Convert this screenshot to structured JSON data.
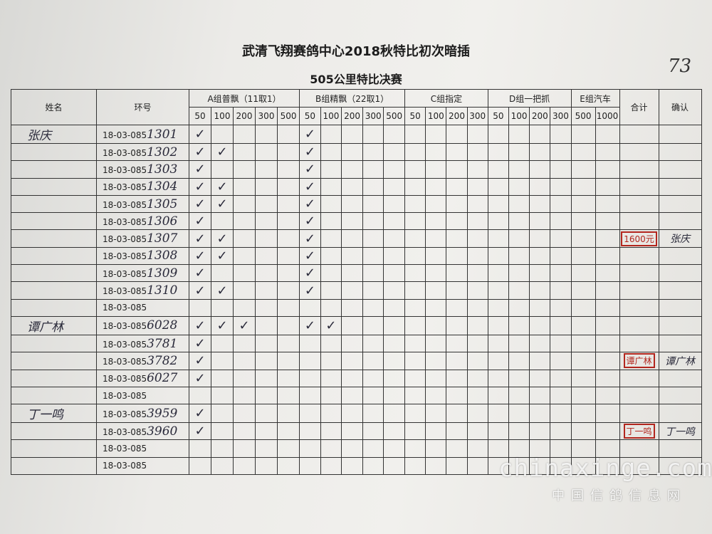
{
  "header": {
    "title": "武清飞翔赛鸽中心2018秋特比初次暗插",
    "subtitle": "505公里特比决赛",
    "page_number": "73"
  },
  "table": {
    "name_header": "姓名",
    "ring_header": "环号",
    "groups": [
      {
        "label": "A组普飘（11取1）",
        "distances": [
          50,
          100,
          200,
          300,
          500
        ]
      },
      {
        "label": "B组精飘（22取1）",
        "distances": [
          50,
          100,
          200,
          300,
          500
        ]
      },
      {
        "label": "C组指定",
        "distances": [
          50,
          100,
          200,
          300
        ]
      },
      {
        "label": "D组一把抓",
        "distances": [
          50,
          100,
          200,
          300
        ]
      },
      {
        "label": "E组汽车",
        "distances": [
          500,
          1000
        ]
      }
    ],
    "total_header": "合计",
    "confirm_header": "确认",
    "rows": [
      {
        "name": "张庆",
        "ring": "18-03-085",
        "ring_suffix": "1301",
        "checks": [
          "✓",
          null,
          null,
          null,
          null,
          "✓",
          null,
          null,
          null,
          null,
          null,
          null,
          null,
          null,
          null,
          null,
          null,
          null,
          null,
          null
        ]
      },
      {
        "ring": "18-03-085",
        "ring_suffix": "1302",
        "checks": [
          "✓",
          "✓",
          null,
          null,
          null,
          "✓",
          null,
          null,
          null,
          null,
          null,
          null,
          null,
          null,
          null,
          null,
          null,
          null,
          null,
          null
        ]
      },
      {
        "ring": "18-03-085",
        "ring_suffix": "1303",
        "checks": [
          "✓",
          null,
          null,
          null,
          null,
          "✓",
          null,
          null,
          null,
          null,
          null,
          null,
          null,
          null,
          null,
          null,
          null,
          null,
          null,
          null
        ]
      },
      {
        "ring": "18-03-085",
        "ring_suffix": "1304",
        "checks": [
          "✓",
          "✓",
          null,
          null,
          null,
          "✓",
          null,
          null,
          null,
          null,
          null,
          null,
          null,
          null,
          null,
          null,
          null,
          null,
          null,
          null
        ]
      },
      {
        "ring": "18-03-085",
        "ring_suffix": "1305",
        "checks": [
          "✓",
          "✓",
          null,
          null,
          null,
          "✓",
          null,
          null,
          null,
          null,
          null,
          null,
          null,
          null,
          null,
          null,
          null,
          null,
          null,
          null
        ]
      },
      {
        "ring": "18-03-085",
        "ring_suffix": "1306",
        "checks": [
          "✓",
          null,
          null,
          null,
          null,
          "✓",
          null,
          null,
          null,
          null,
          null,
          null,
          null,
          null,
          null,
          null,
          null,
          null,
          null,
          null
        ]
      },
      {
        "ring": "18-03-085",
        "ring_suffix": "1307",
        "checks": [
          "✓",
          "✓",
          null,
          null,
          null,
          "✓",
          null,
          null,
          null,
          null,
          null,
          null,
          null,
          null,
          null,
          null,
          null,
          null,
          null,
          null
        ],
        "total": "1600元",
        "confirm": "张庆"
      },
      {
        "ring": "18-03-085",
        "ring_suffix": "1308",
        "checks": [
          "✓",
          "✓",
          null,
          null,
          null,
          "✓",
          null,
          null,
          null,
          null,
          null,
          null,
          null,
          null,
          null,
          null,
          null,
          null,
          null,
          null
        ]
      },
      {
        "ring": "18-03-085",
        "ring_suffix": "1309",
        "checks": [
          "✓",
          null,
          null,
          null,
          null,
          "✓",
          null,
          null,
          null,
          null,
          null,
          null,
          null,
          null,
          null,
          null,
          null,
          null,
          null,
          null
        ]
      },
      {
        "ring": "18-03-085",
        "ring_suffix": "1310",
        "checks": [
          "✓",
          "✓",
          null,
          null,
          null,
          "✓",
          null,
          null,
          null,
          null,
          null,
          null,
          null,
          null,
          null,
          null,
          null,
          null,
          null,
          null
        ]
      },
      {
        "ring": "18-03-085"
      },
      {
        "name": "谭广林",
        "ring": "18-03-085",
        "ring_suffix": "6028",
        "checks": [
          "✓",
          "✓",
          "✓",
          null,
          null,
          "✓",
          "✓",
          null,
          null,
          null,
          null,
          null,
          null,
          null,
          null,
          null,
          null,
          null,
          null,
          null
        ]
      },
      {
        "ring": "18-03-085",
        "ring_suffix": "3781",
        "checks": [
          "✓",
          null,
          null,
          null,
          null,
          null,
          null,
          null,
          null,
          null,
          null,
          null,
          null,
          null,
          null,
          null,
          null,
          null,
          null,
          null
        ]
      },
      {
        "ring": "18-03-085",
        "ring_suffix": "3782",
        "checks": [
          "✓",
          null,
          null,
          null,
          null,
          null,
          null,
          null,
          null,
          null,
          null,
          null,
          null,
          null,
          null,
          null,
          null,
          null,
          null,
          null
        ],
        "total": "谭广林",
        "confirm": "谭广林"
      },
      {
        "ring": "18-03-085",
        "ring_suffix": "6027",
        "checks": [
          "✓",
          null,
          null,
          null,
          null,
          null,
          null,
          null,
          null,
          null,
          null,
          null,
          null,
          null,
          null,
          null,
          null,
          null,
          null,
          null
        ]
      },
      {
        "ring": "18-03-085"
      },
      {
        "name": "丁一鸣",
        "ring": "18-03-085",
        "ring_suffix": "3959",
        "checks": [
          "✓",
          null,
          null,
          null,
          null,
          null,
          null,
          null,
          null,
          null,
          null,
          null,
          null,
          null,
          null,
          null,
          null,
          null,
          null,
          null
        ]
      },
      {
        "ring": "18-03-085",
        "ring_suffix": "3960",
        "checks": [
          "✓",
          null,
          null,
          null,
          null,
          null,
          null,
          null,
          null,
          null,
          null,
          null,
          null,
          null,
          null,
          null,
          null,
          null,
          null,
          null
        ],
        "total": "丁一鸣",
        "confirm": "丁一鸣"
      },
      {
        "ring": "18-03-085"
      },
      {
        "ring": "18-03-085"
      }
    ]
  },
  "watermark": {
    "site": "chinaxinge.com",
    "site_name": "中国信鸽信息网"
  }
}
